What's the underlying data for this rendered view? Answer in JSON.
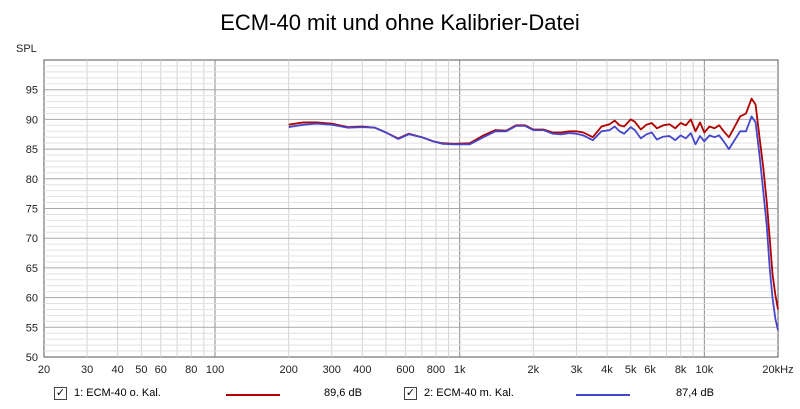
{
  "chart_data": {
    "type": "line",
    "title": "ECM-40 mit und ohne Kalibrier-Datei",
    "ylabel": "SPL",
    "xlabel": "",
    "x_scale": "log",
    "xlim": [
      20,
      20000
    ],
    "ylim": [
      50,
      100
    ],
    "grid": true,
    "x_ticks": [
      {
        "value": 20,
        "label": "20"
      },
      {
        "value": 30,
        "label": "30"
      },
      {
        "value": 40,
        "label": "40"
      },
      {
        "value": 50,
        "label": "50"
      },
      {
        "value": 60,
        "label": "60"
      },
      {
        "value": 80,
        "label": "80"
      },
      {
        "value": 100,
        "label": "100"
      },
      {
        "value": 200,
        "label": "200"
      },
      {
        "value": 300,
        "label": "300"
      },
      {
        "value": 400,
        "label": "400"
      },
      {
        "value": 600,
        "label": "600"
      },
      {
        "value": 800,
        "label": "800"
      },
      {
        "value": 1000,
        "label": "1k"
      },
      {
        "value": 2000,
        "label": "2k"
      },
      {
        "value": 3000,
        "label": "3k"
      },
      {
        "value": 4000,
        "label": "4k"
      },
      {
        "value": 5000,
        "label": "5k"
      },
      {
        "value": 6000,
        "label": "6k"
      },
      {
        "value": 8000,
        "label": "8k"
      },
      {
        "value": 10000,
        "label": "10k"
      },
      {
        "value": 20000,
        "label": "20kHz"
      }
    ],
    "y_ticks": [
      {
        "value": 50,
        "label": "50"
      },
      {
        "value": 55,
        "label": "55"
      },
      {
        "value": 60,
        "label": "60"
      },
      {
        "value": 65,
        "label": "65"
      },
      {
        "value": 70,
        "label": "70"
      },
      {
        "value": 75,
        "label": "75"
      },
      {
        "value": 80,
        "label": "80"
      },
      {
        "value": 85,
        "label": "85"
      },
      {
        "value": 90,
        "label": "90"
      },
      {
        "value": 95,
        "label": "95"
      }
    ],
    "series": [
      {
        "name": "1: ECM-40 o. Kal.",
        "color": "#b00000",
        "summary": "89,6 dB",
        "x": [
          200,
          230,
          260,
          300,
          350,
          400,
          450,
          500,
          560,
          620,
          700,
          780,
          850,
          950,
          1100,
          1250,
          1400,
          1550,
          1700,
          1850,
          2000,
          2200,
          2400,
          2600,
          2800,
          3000,
          3200,
          3500,
          3800,
          4100,
          4300,
          4500,
          4700,
          5000,
          5200,
          5500,
          5800,
          6100,
          6400,
          6800,
          7200,
          7600,
          8000,
          8400,
          8800,
          9200,
          9600,
          10000,
          10500,
          11000,
          11500,
          12000,
          12600,
          13200,
          14000,
          14800,
          15600,
          16200,
          16800,
          17400,
          18000,
          18500,
          19000,
          19500,
          20000
        ],
        "y": [
          89.1,
          89.5,
          89.5,
          89.3,
          88.7,
          88.8,
          88.6,
          87.8,
          86.8,
          87.6,
          87.0,
          86.3,
          86.0,
          85.9,
          86.0,
          87.3,
          88.2,
          88.1,
          89.0,
          89.0,
          88.3,
          88.3,
          87.8,
          87.8,
          88.0,
          88.0,
          87.8,
          87.0,
          88.8,
          89.2,
          89.8,
          89.0,
          88.8,
          90.0,
          89.6,
          88.3,
          89.1,
          89.4,
          88.5,
          89.0,
          89.2,
          88.5,
          89.4,
          89.0,
          90.0,
          88.0,
          89.5,
          87.8,
          88.8,
          88.5,
          89.0,
          88.0,
          87.0,
          88.5,
          90.5,
          91.0,
          93.5,
          92.5,
          87.0,
          82.0,
          76.0,
          70.0,
          64.0,
          60.5,
          58.0
        ]
      },
      {
        "name": "2: ECM-40 m. Kal.",
        "color": "#4646cc",
        "summary": "87,4 dB",
        "x": [
          200,
          230,
          260,
          300,
          350,
          400,
          450,
          500,
          560,
          620,
          700,
          780,
          850,
          950,
          1100,
          1250,
          1400,
          1550,
          1700,
          1850,
          2000,
          2200,
          2400,
          2600,
          2800,
          3000,
          3200,
          3500,
          3800,
          4100,
          4300,
          4500,
          4700,
          5000,
          5200,
          5500,
          5800,
          6100,
          6400,
          6800,
          7200,
          7600,
          8000,
          8400,
          8800,
          9200,
          9600,
          10000,
          10500,
          11000,
          11500,
          12000,
          12600,
          13200,
          14000,
          14800,
          15600,
          16200,
          16800,
          17400,
          18000,
          18500,
          19000,
          19500,
          20000
        ],
        "y": [
          88.7,
          89.1,
          89.3,
          89.1,
          88.6,
          88.7,
          88.6,
          87.8,
          86.7,
          87.5,
          87.0,
          86.3,
          85.9,
          85.8,
          85.8,
          87.0,
          88.0,
          88.0,
          88.9,
          88.9,
          88.2,
          88.2,
          87.6,
          87.5,
          87.7,
          87.6,
          87.3,
          86.5,
          88.0,
          88.2,
          88.8,
          88.0,
          87.6,
          88.7,
          88.2,
          86.8,
          87.5,
          87.8,
          86.6,
          87.1,
          87.2,
          86.5,
          87.3,
          86.8,
          87.7,
          85.8,
          87.2,
          86.3,
          87.3,
          87.0,
          87.3,
          86.3,
          85.0,
          86.3,
          88.0,
          88.0,
          90.5,
          89.5,
          84.0,
          78.0,
          72.0,
          65.0,
          60.0,
          56.5,
          54.5
        ]
      }
    ]
  }
}
